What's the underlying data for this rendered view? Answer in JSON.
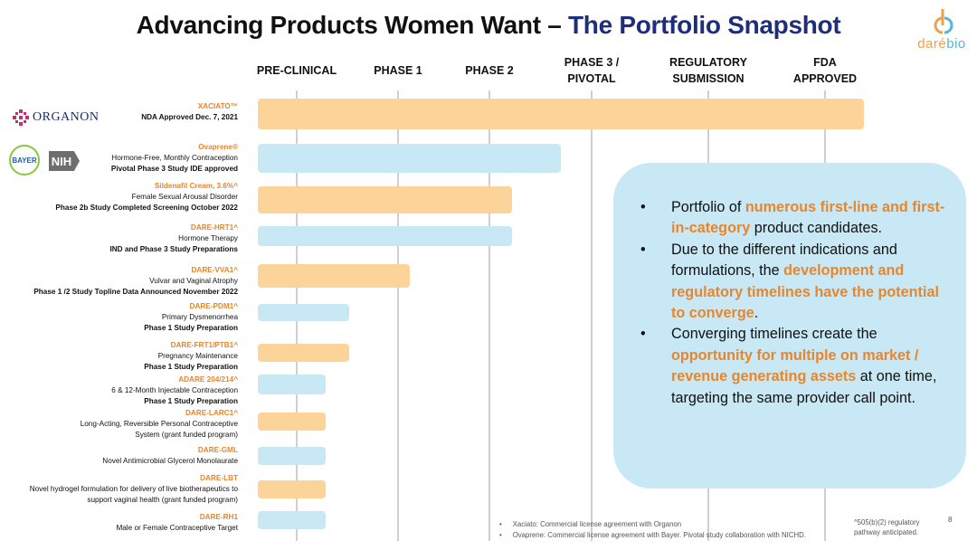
{
  "title": {
    "part1": "Advancing Products Women Want – ",
    "part2": "The Portfolio Snapshot"
  },
  "logo": {
    "dare": "daré",
    "bio": "bio"
  },
  "colors": {
    "orange_bar": "#fcd398",
    "blue_bar": "#c7e8f4",
    "highlight": "#e8862c",
    "title_blue": "#1f2e7a"
  },
  "phases": [
    {
      "line1": "PRE-CLINICAL",
      "line2": ""
    },
    {
      "line1": "PHASE 1",
      "line2": ""
    },
    {
      "line1": "PHASE 2",
      "line2": ""
    },
    {
      "line1": "PHASE 3 /",
      "line2": "PIVOTAL"
    },
    {
      "line1": "REGULATORY",
      "line2": "SUBMISSION"
    },
    {
      "line1": "FDA",
      "line2": "APPROVED"
    }
  ],
  "partners": {
    "organon": "ORGANON",
    "bayer": "BAYER",
    "nih": "NIH"
  },
  "products": [
    {
      "name": "XACIATO™",
      "line1": "NDA Approved Dec. 7, 2021",
      "line2": "",
      "color": "orange",
      "progress": 1.0
    },
    {
      "name": "Ovaprene®",
      "line1": "Hormone-Free, Monthly Contraception",
      "line2": "Pivotal Phase 3 Study IDE approved",
      "color": "blue",
      "progress": 0.5
    },
    {
      "name": "Sildenafil Cream, 3.6%^",
      "line1": "Female Sexual Arousal Disorder",
      "line2": "Phase 2b Study Completed Screening October 2022",
      "color": "orange",
      "progress": 0.42
    },
    {
      "name": "DARE-HRT1^",
      "line1": "Hormone Therapy",
      "line2": "IND and Phase 3 Study Preparations",
      "color": "blue",
      "progress": 0.42
    },
    {
      "name": "DARE-VVA1^",
      "line1": "Vulvar and Vaginal Atrophy",
      "line2": "Phase 1 /2 Study Topline Data Announced November 2022",
      "color": "orange",
      "progress": 0.25
    },
    {
      "name": "DARE-PDM1^",
      "line1": "Primary Dysmenorrhea",
      "line2": "Phase 1 Study Preparation",
      "color": "blue",
      "progress": 0.15
    },
    {
      "name": "DARE-FRT1/PTB1^",
      "line1": "Pregnancy Maintenance",
      "line2": "Phase 1 Study Preparation",
      "color": "orange",
      "progress": 0.15
    },
    {
      "name": "ADARE 204/214^",
      "line1": "6 & 12-Month  Injectable Contraception",
      "line2": "Phase 1 Study Preparation",
      "color": "blue",
      "progress": 0.11
    },
    {
      "name": "DARE-LARC1^",
      "line1": "Long-Acting, Reversible Personal Contraceptive",
      "line2": "System (grant funded program)",
      "color": "orange",
      "progress": 0.11
    },
    {
      "name": "DARE-GML",
      "line1": "Novel Antimicrobial Glycerol Monolaurate",
      "line2": "",
      "color": "blue",
      "progress": 0.11
    },
    {
      "name": "DARE-LBT",
      "line1": "Novel hydrogel formulation for delivery of live biotherapeutics to",
      "line2": "support vaginal health (grant funded program)",
      "color": "orange",
      "progress": 0.11
    },
    {
      "name": "DARE-RH1",
      "line1": "Male or Female Contraceptive Target",
      "line2": "",
      "color": "blue",
      "progress": 0.11
    }
  ],
  "callout": {
    "bullet": "•",
    "b1": {
      "pre": "Portfolio of ",
      "hl": "numerous first-line and first-in-category",
      "post": " product candidates."
    },
    "b2": {
      "pre": " Due to the different indications and formulations, the ",
      "hl": "development and regulatory timelines have the potential to converge",
      "post": "."
    },
    "b3": {
      "pre": "Converging timelines create the ",
      "hl": "opportunity for multiple on market / revenue generating assets",
      "post": " at one time, targeting the same provider call point."
    }
  },
  "footnotes": [
    "Xaciato: Commercial license agreement with Organon",
    "Ovaprene: Commercial license agreement with Bayer.  Pivotal study collaboration with NICHD."
  ],
  "note_505": "^505(b)(2) regulatory pathway anticipated.",
  "page_number": "8"
}
